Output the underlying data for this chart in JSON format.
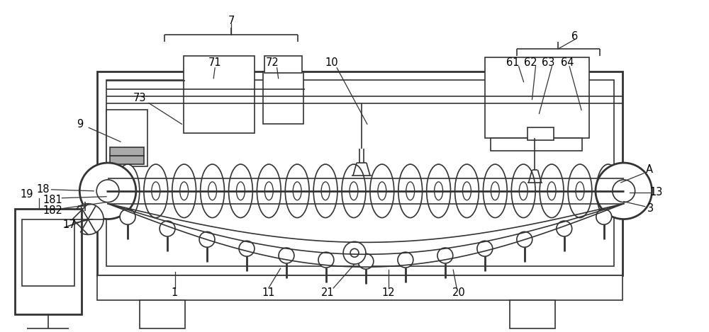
{
  "bg_color": "#ffffff",
  "line_color": "#333333",
  "lw": 1.2,
  "lw_thick": 2.0,
  "fig_width": 10.0,
  "fig_height": 4.69
}
